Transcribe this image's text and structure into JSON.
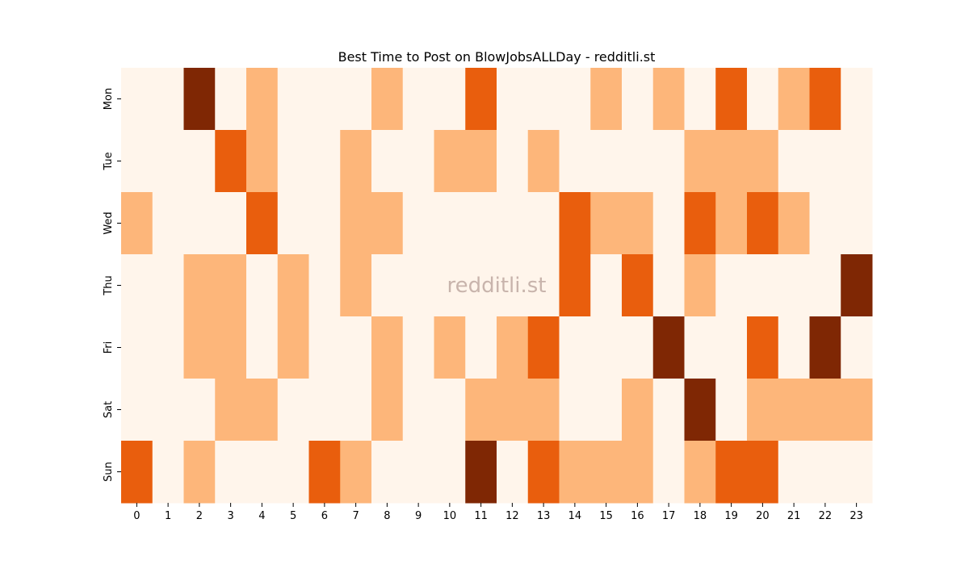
{
  "chart_data": {
    "type": "heatmap",
    "title": "Best Time to Post on BlowJobsALLDay - redditli.st",
    "watermark": "redditli.st",
    "xlabel": "",
    "ylabel": "",
    "x_labels": [
      "0",
      "1",
      "2",
      "3",
      "4",
      "5",
      "6",
      "7",
      "8",
      "9",
      "10",
      "11",
      "12",
      "13",
      "14",
      "15",
      "16",
      "17",
      "18",
      "19",
      "20",
      "21",
      "22",
      "23"
    ],
    "y_labels": [
      "Mon",
      "Tue",
      "Wed",
      "Thu",
      "Fri",
      "Sat",
      "Sun"
    ],
    "values": [
      [
        0,
        0,
        3,
        0,
        1,
        0,
        0,
        0,
        1,
        0,
        0,
        2,
        0,
        0,
        0,
        1,
        0,
        1,
        0,
        2,
        0,
        1,
        2,
        0
      ],
      [
        0,
        0,
        0,
        2,
        1,
        0,
        0,
        1,
        0,
        0,
        1,
        1,
        0,
        1,
        0,
        0,
        0,
        0,
        1,
        1,
        1,
        0,
        0,
        0
      ],
      [
        1,
        0,
        0,
        0,
        2,
        0,
        0,
        1,
        1,
        0,
        0,
        0,
        0,
        0,
        2,
        1,
        1,
        0,
        2,
        1,
        2,
        1,
        0,
        0
      ],
      [
        0,
        0,
        1,
        1,
        0,
        1,
        0,
        1,
        0,
        0,
        0,
        0,
        0,
        0,
        2,
        0,
        2,
        0,
        1,
        0,
        0,
        0,
        0,
        3
      ],
      [
        0,
        0,
        1,
        1,
        0,
        1,
        0,
        0,
        1,
        0,
        1,
        0,
        1,
        2,
        0,
        0,
        0,
        3,
        0,
        0,
        2,
        0,
        3,
        0
      ],
      [
        0,
        0,
        0,
        1,
        1,
        0,
        0,
        0,
        1,
        0,
        0,
        1,
        1,
        1,
        0,
        0,
        1,
        0,
        3,
        0,
        1,
        1,
        1,
        1
      ],
      [
        2,
        0,
        1,
        0,
        0,
        0,
        2,
        1,
        0,
        0,
        0,
        3,
        0,
        2,
        1,
        1,
        1,
        0,
        1,
        2,
        2,
        0,
        0,
        0
      ]
    ],
    "value_range": [
      0,
      3
    ],
    "colormap": [
      "#fff5eb",
      "#fdb67a",
      "#e95e0d",
      "#7f2704"
    ],
    "watermark_color": "#c8b4ac",
    "colorbar": false,
    "grid": false
  }
}
